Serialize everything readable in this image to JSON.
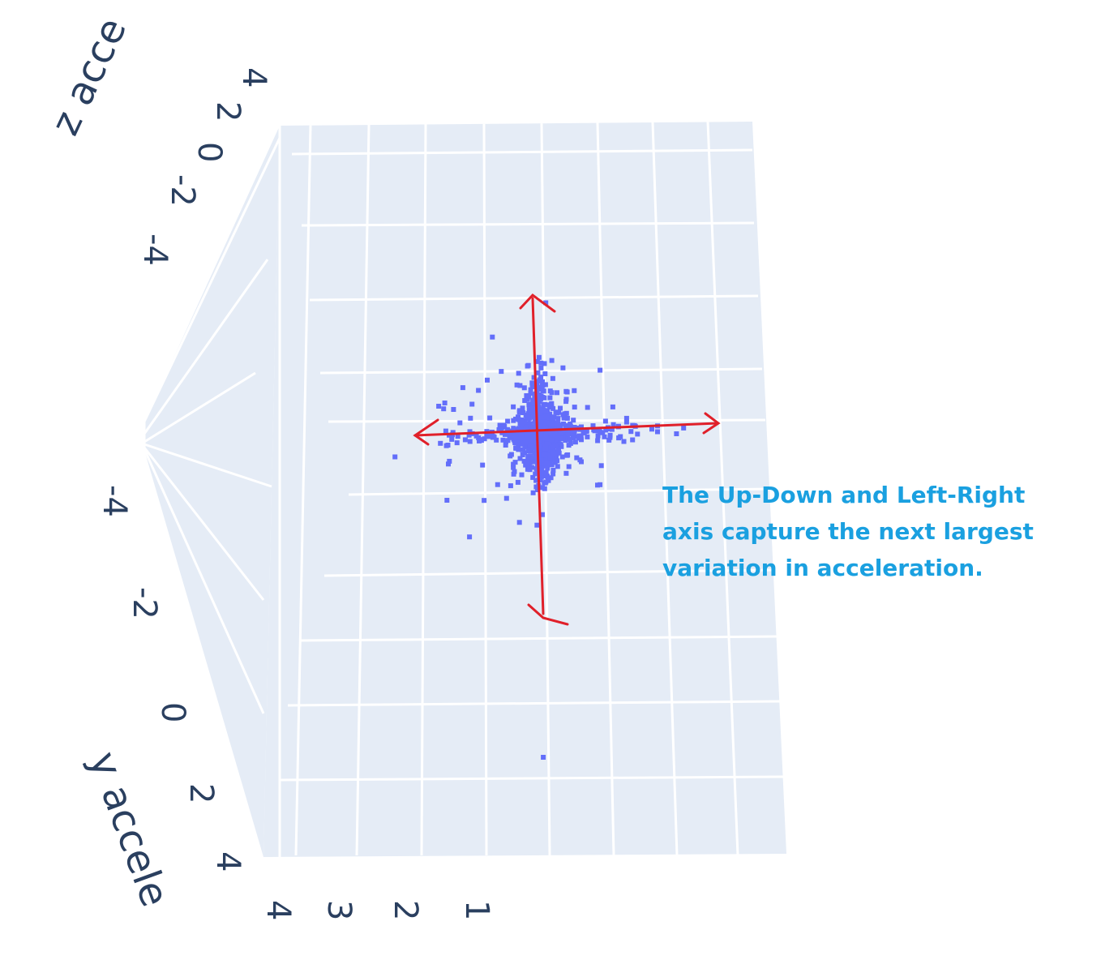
{
  "chart_data": {
    "type": "scatter",
    "dimensions": 3,
    "title": "",
    "axes": {
      "y": {
        "title": "y accele",
        "ticks": [
          "-4",
          "-2",
          "0",
          "2",
          "4"
        ]
      },
      "z": {
        "title": "z acce",
        "ticks": [
          "4",
          "2",
          "0",
          "-2",
          "-4"
        ]
      },
      "x": {
        "title": "",
        "ticks": [
          "4",
          "3",
          "2",
          "1"
        ]
      }
    },
    "marker_color": "#636efa",
    "scene_background": "#e5ecf6",
    "grid": true,
    "points_visible_projection": {
      "description_units": "projected horizontal (y accel) and vertical (z accel) values",
      "cluster_center": [
        0.0,
        0.0
      ],
      "outliers": [
        [
          -2.9,
          -0.3
        ],
        [
          2.7,
          0.0
        ],
        [
          0.05,
          -4.2
        ],
        [
          0.1,
          1.7
        ]
      ]
    },
    "annotation": {
      "lines": [
        "The Up-Down and Left-Right",
        "axis capture the next largest",
        "variation in acceleration."
      ],
      "color": "#1aa0e0",
      "arrow_color": "#e0202a"
    }
  }
}
